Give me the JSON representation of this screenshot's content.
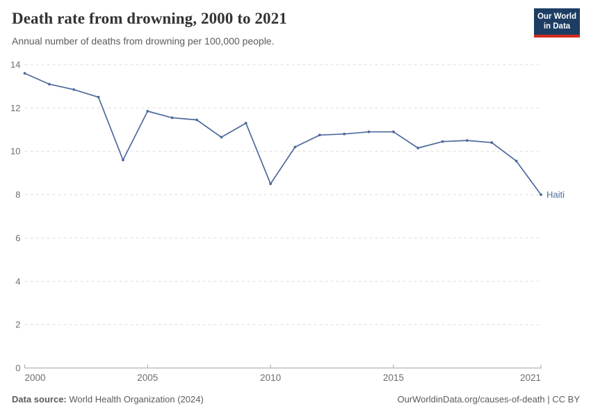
{
  "header": {
    "title": "Death rate from drowning, 2000 to 2021",
    "subtitle": "Annual number of deaths from drowning per 100,000 people.",
    "logo_line1": "Our World",
    "logo_line2": "in Data"
  },
  "chart_data": {
    "type": "line",
    "title": "Death rate from drowning, 2000 to 2021",
    "ylabel": "Annual number of deaths from drowning per 100,000 people",
    "xlim": [
      2000,
      2021
    ],
    "ylim": [
      0,
      14
    ],
    "x_ticks": [
      2000,
      2005,
      2010,
      2015,
      2021
    ],
    "y_ticks": [
      0,
      2,
      4,
      6,
      8,
      10,
      12,
      14
    ],
    "grid": "horizontal-dashed",
    "legend_position": "end-of-line",
    "series": [
      {
        "name": "Haiti",
        "color": "#4c6a9c",
        "x": [
          2000,
          2001,
          2002,
          2003,
          2004,
          2005,
          2006,
          2007,
          2008,
          2009,
          2010,
          2011,
          2012,
          2013,
          2014,
          2015,
          2016,
          2017,
          2018,
          2019,
          2020,
          2021
        ],
        "values": [
          13.6,
          13.1,
          12.85,
          12.5,
          9.6,
          11.85,
          11.55,
          11.45,
          10.65,
          11.3,
          8.5,
          10.2,
          10.75,
          10.8,
          10.9,
          10.9,
          10.15,
          10.45,
          10.5,
          10.4,
          9.55,
          8.0
        ]
      }
    ]
  },
  "footer": {
    "source_label": "Data source:",
    "source_value": "World Health Organization (2024)",
    "attribution": "OurWorldinData.org/causes-of-death | CC BY"
  },
  "colors": {
    "line": "#4c6a9c",
    "gridline": "#dcdcdc",
    "axis": "#a5a5a5",
    "tick_label": "#6e6e6e",
    "logo_bg": "#1d3d63",
    "logo_accent": "#d42b21",
    "title_text": "#333333",
    "muted_text": "#5b5b5b"
  }
}
